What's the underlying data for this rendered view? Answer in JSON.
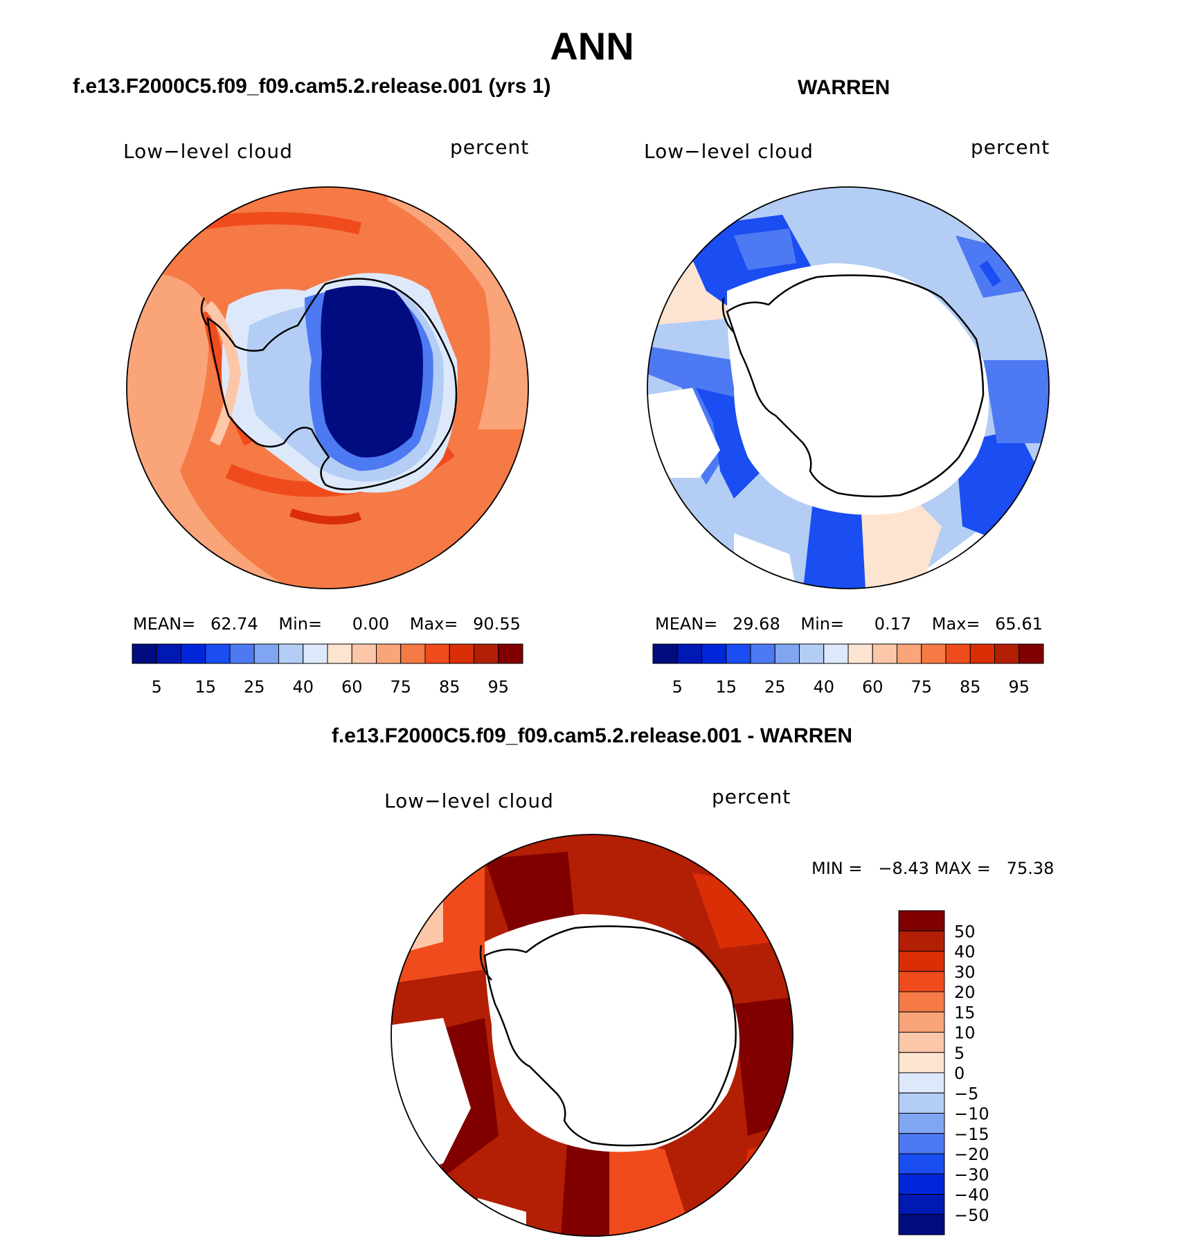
{
  "figure": {
    "title": "ANN",
    "panels": [
      {
        "subtitle": "f.e13.F2000C5.f09_f09.cam5.2.release.001 (yrs 1)",
        "left_label": "Low−level cloud",
        "right_label": "percent",
        "stats": {
          "mean_label": "MEAN=",
          "mean": "62.74",
          "min_label": "Min=",
          "min": "0.00",
          "max_label": "Max=",
          "max": "90.55"
        }
      },
      {
        "subtitle": "WARREN",
        "left_label": "Low−level cloud",
        "right_label": "percent",
        "stats": {
          "mean_label": "MEAN=",
          "mean": "29.68",
          "min_label": "Min=",
          "min": "0.17",
          "max_label": "Max=",
          "max": "65.61"
        }
      },
      {
        "subtitle": "f.e13.F2000C5.f09_f09.cam5.2.release.001 - WARREN",
        "left_label": "Low−level cloud",
        "right_label": "percent",
        "minmax_text": "MIN =   −8.43 MAX =   75.38"
      }
    ],
    "colorbar_abs": {
      "ticks": [
        "5",
        "15",
        "25",
        "40",
        "60",
        "75",
        "85",
        "95"
      ],
      "colors": [
        "#000c80",
        "#0019b3",
        "#0026d9",
        "#1a4df2",
        "#4d79f2",
        "#80a6f2",
        "#b3cdf5",
        "#dde9fb",
        "#fde4d1",
        "#fcc7a9",
        "#f9a479",
        "#f57a46",
        "#f04b1c",
        "#d92e06",
        "#b31f04",
        "#800000"
      ]
    },
    "colorbar_diff": {
      "ticks": [
        "50",
        "40",
        "30",
        "20",
        "15",
        "10",
        "5",
        "0",
        "−5",
        "−10",
        "−15",
        "−20",
        "−30",
        "−40",
        "−50"
      ],
      "colors": [
        "#800000",
        "#b31f04",
        "#d92e06",
        "#f04b1c",
        "#f57a46",
        "#f9a479",
        "#fcc7a9",
        "#fde4d1",
        "#dde9fb",
        "#b3cdf5",
        "#80a6f2",
        "#4d79f2",
        "#1a4df2",
        "#0026d9",
        "#0019b3",
        "#000c80"
      ]
    }
  }
}
